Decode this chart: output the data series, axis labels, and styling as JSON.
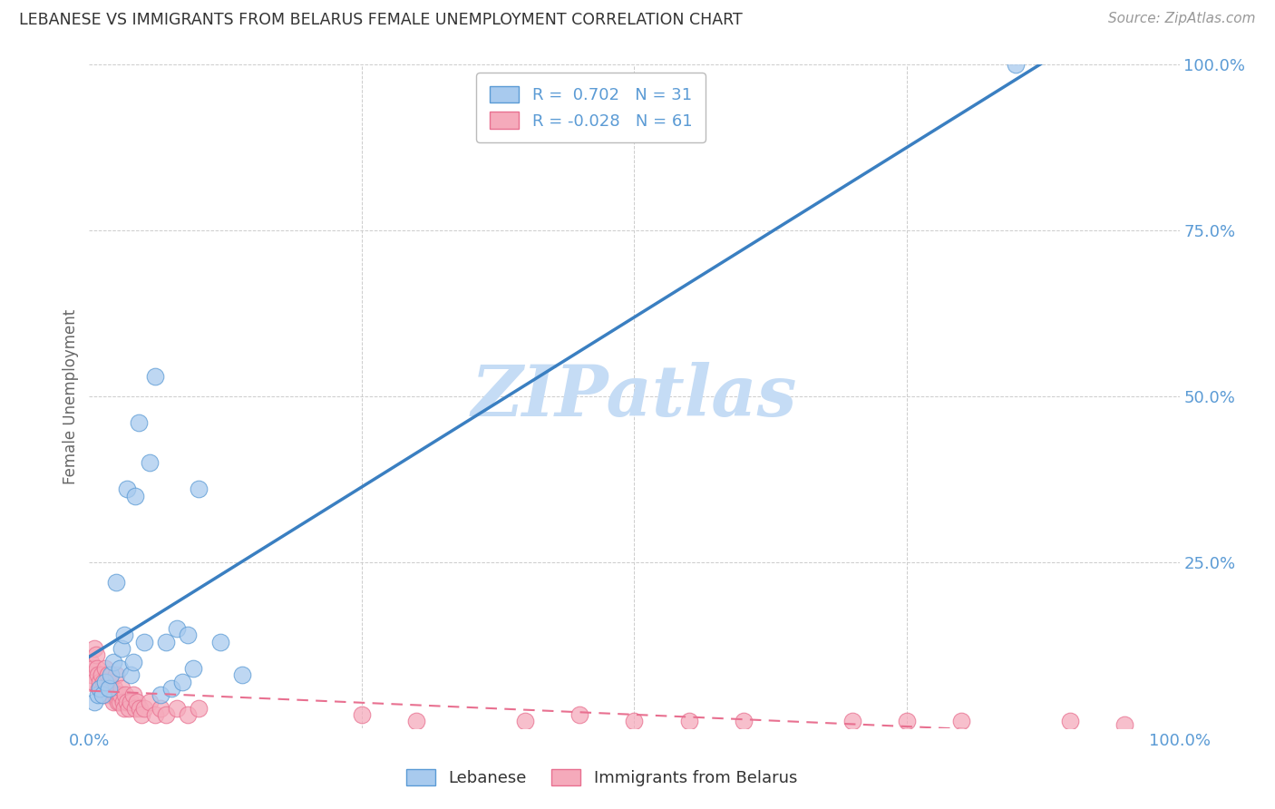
{
  "title": "LEBANESE VS IMMIGRANTS FROM BELARUS FEMALE UNEMPLOYMENT CORRELATION CHART",
  "source": "Source: ZipAtlas.com",
  "ylabel": "Female Unemployment",
  "watermark": "ZIPatlas",
  "xlim": [
    0,
    1.0
  ],
  "ylim": [
    0,
    1.0
  ],
  "xtick_positions": [
    0.0,
    1.0
  ],
  "xticklabels": [
    "0.0%",
    "100.0%"
  ],
  "ytick_positions": [],
  "right_ytick_positions": [
    0.25,
    0.5,
    0.75,
    1.0
  ],
  "right_yticklabels": [
    "25.0%",
    "50.0%",
    "75.0%",
    "100.0%"
  ],
  "grid_yticks": [
    0.25,
    0.5,
    0.75,
    1.0
  ],
  "grid_xticks": [
    0.25,
    0.5,
    0.75
  ],
  "blue_scatter_color": "#A8CAEE",
  "pink_scatter_color": "#F5AABB",
  "blue_edge_color": "#5B9BD5",
  "pink_edge_color": "#E87090",
  "blue_line_color": "#3A7FC1",
  "pink_line_color": "#E87090",
  "axis_label_color": "#5B9BD5",
  "title_color": "#333333",
  "grid_color": "#CCCCCC",
  "watermark_color": "#C5DCF5",
  "source_color": "#999999",
  "blue_R": 0.702,
  "blue_N": 31,
  "pink_R": -0.028,
  "pink_N": 61,
  "lebanese_x": [
    0.005,
    0.008,
    0.01,
    0.012,
    0.015,
    0.018,
    0.02,
    0.022,
    0.025,
    0.028,
    0.03,
    0.032,
    0.035,
    0.038,
    0.04,
    0.042,
    0.045,
    0.05,
    0.055,
    0.06,
    0.065,
    0.07,
    0.075,
    0.08,
    0.085,
    0.09,
    0.095,
    0.1,
    0.12,
    0.14,
    0.85
  ],
  "lebanese_y": [
    0.04,
    0.05,
    0.06,
    0.05,
    0.07,
    0.06,
    0.08,
    0.1,
    0.22,
    0.09,
    0.12,
    0.14,
    0.36,
    0.08,
    0.1,
    0.35,
    0.46,
    0.13,
    0.4,
    0.53,
    0.05,
    0.13,
    0.06,
    0.15,
    0.07,
    0.14,
    0.09,
    0.36,
    0.13,
    0.08,
    1.0
  ],
  "belarus_x": [
    0.001,
    0.002,
    0.003,
    0.004,
    0.005,
    0.006,
    0.007,
    0.008,
    0.009,
    0.01,
    0.011,
    0.012,
    0.013,
    0.014,
    0.015,
    0.016,
    0.017,
    0.018,
    0.019,
    0.02,
    0.021,
    0.022,
    0.023,
    0.024,
    0.025,
    0.026,
    0.027,
    0.028,
    0.029,
    0.03,
    0.031,
    0.032,
    0.033,
    0.035,
    0.036,
    0.038,
    0.04,
    0.042,
    0.044,
    0.046,
    0.048,
    0.05,
    0.055,
    0.06,
    0.065,
    0.07,
    0.08,
    0.09,
    0.1,
    0.25,
    0.3,
    0.4,
    0.45,
    0.5,
    0.55,
    0.6,
    0.7,
    0.75,
    0.8,
    0.9,
    0.95
  ],
  "belarus_y": [
    0.1,
    0.08,
    0.09,
    0.07,
    0.12,
    0.11,
    0.09,
    0.08,
    0.06,
    0.07,
    0.08,
    0.06,
    0.07,
    0.05,
    0.09,
    0.06,
    0.08,
    0.05,
    0.07,
    0.06,
    0.05,
    0.04,
    0.06,
    0.05,
    0.08,
    0.04,
    0.05,
    0.04,
    0.05,
    0.06,
    0.04,
    0.03,
    0.05,
    0.04,
    0.03,
    0.04,
    0.05,
    0.03,
    0.04,
    0.03,
    0.02,
    0.03,
    0.04,
    0.02,
    0.03,
    0.02,
    0.03,
    0.02,
    0.03,
    0.02,
    0.01,
    0.01,
    0.02,
    0.01,
    0.01,
    0.01,
    0.01,
    0.01,
    0.01,
    0.01,
    0.005
  ]
}
